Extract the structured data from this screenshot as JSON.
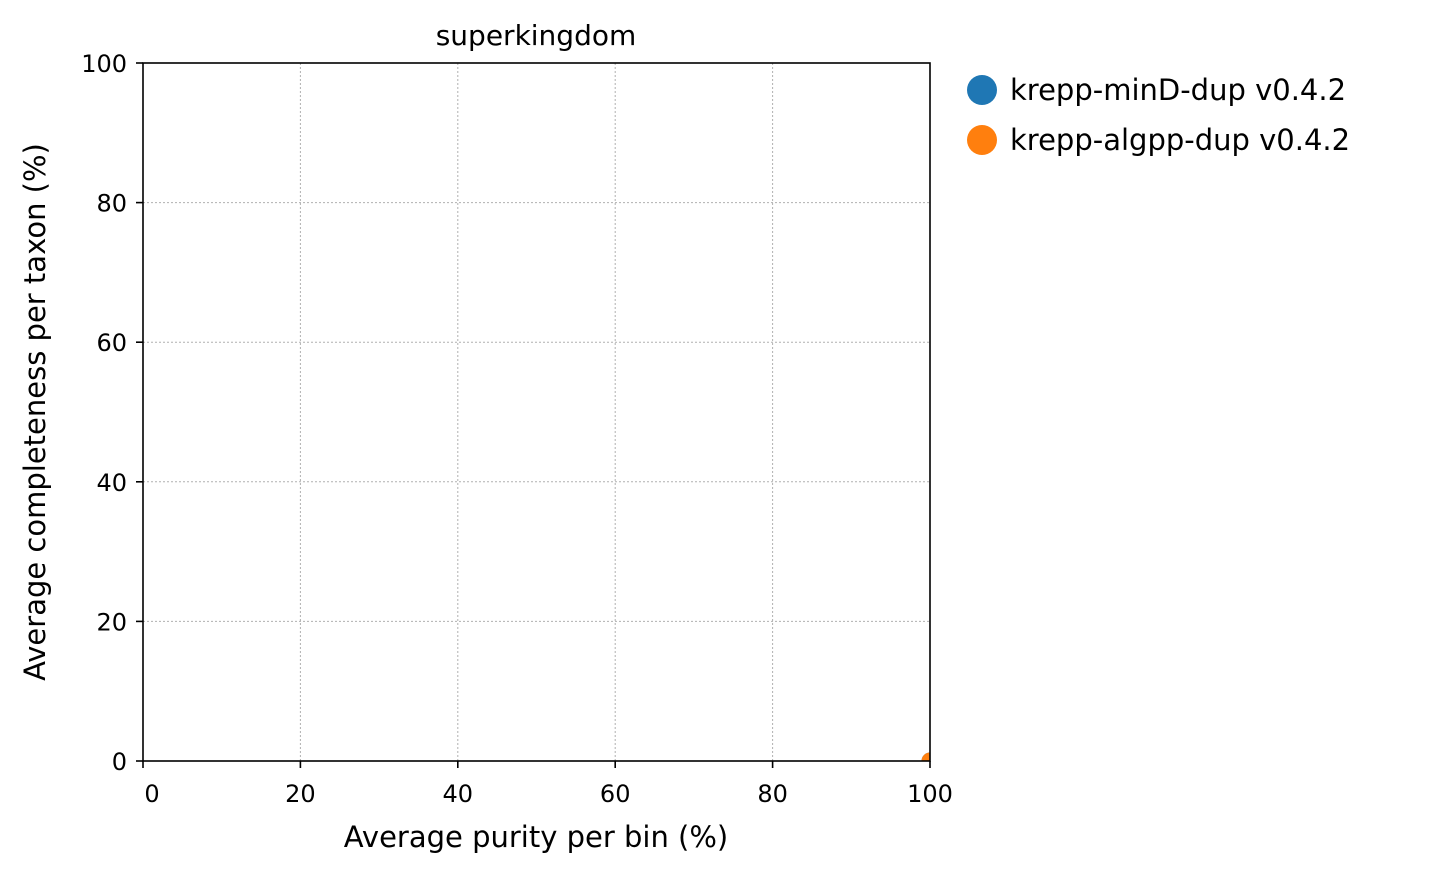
{
  "chart_data": {
    "type": "scatter",
    "title": "superkingdom",
    "xlabel": "Average purity per bin (%)",
    "ylabel": "Average completeness per taxon (%)",
    "xlim": [
      0,
      100
    ],
    "ylim": [
      0,
      100
    ],
    "xticks": [
      0,
      20,
      40,
      60,
      80,
      100
    ],
    "yticks": [
      0,
      20,
      40,
      60,
      80,
      100
    ],
    "grid": true,
    "legend_position": "outside-right-top",
    "series": [
      {
        "name": "krepp-minD-dup v0.4.2",
        "color": "#1f77b4",
        "points": [
          {
            "x": 100,
            "y": 0
          }
        ]
      },
      {
        "name": "krepp-algpp-dup v0.4.2",
        "color": "#ff7f0e",
        "points": [
          {
            "x": 100,
            "y": 0
          }
        ]
      }
    ]
  }
}
